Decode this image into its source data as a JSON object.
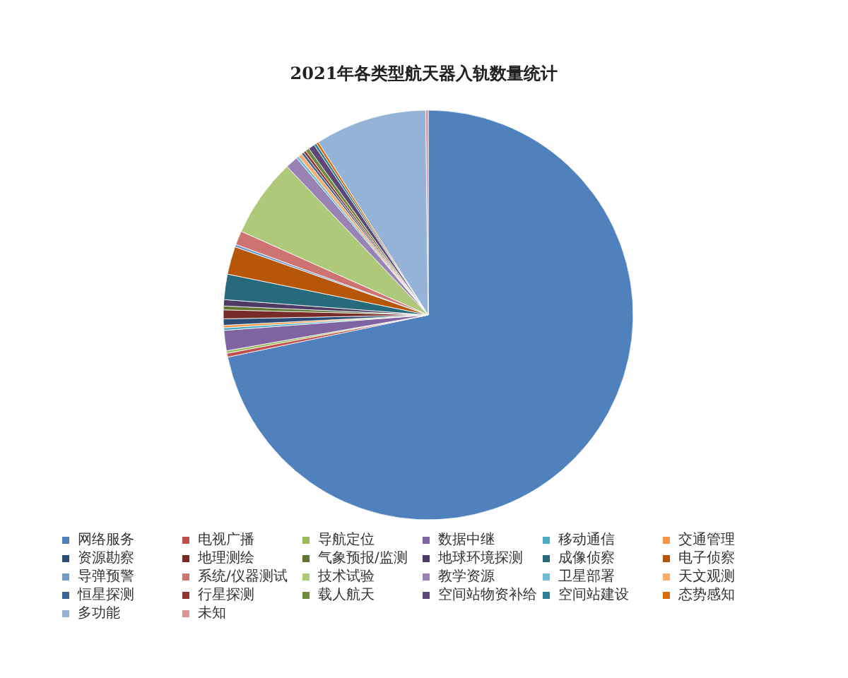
{
  "chart_data": {
    "type": "pie",
    "title": "2021年各类型航天器入轨数量统计",
    "categories": [
      "网络服务",
      "电视广播",
      "导航定位",
      "数据中继",
      "移动通信",
      "交通管理",
      "资源勘察",
      "地理测绘",
      "气象预报/监测",
      "地球环境探测",
      "成像侦察",
      "电子侦察",
      "导弹预警",
      "系统/仪器测试",
      "技术试验",
      "教学资源",
      "卫星部署",
      "天文观测",
      "恒星探测",
      "行星探测",
      "载人航天",
      "空间站物资补给",
      "空间站建设",
      "态势感知",
      "多功能",
      "未知"
    ],
    "values": [
      71.7,
      0.3,
      0.2,
      1.6,
      0.2,
      0.2,
      0.5,
      0.7,
      0.3,
      0.5,
      2.0,
      2.2,
      0.2,
      1.1,
      6.2,
      1.0,
      0.2,
      0.3,
      0.2,
      0.2,
      0.3,
      0.5,
      0.2,
      0.2,
      8.8,
      0.2
    ],
    "colors": [
      "#4f81bd",
      "#c0504d",
      "#9bbb59",
      "#8064a2",
      "#4bacc6",
      "#f79646",
      "#2c4d75",
      "#772c2a",
      "#5f7530",
      "#4d3b62",
      "#276a7c",
      "#b65708",
      "#729aca",
      "#cd7371",
      "#afc97a",
      "#9983b5",
      "#6fbdd1",
      "#f9ab6b",
      "#3c6594",
      "#8f3633",
      "#71893f",
      "#5c4776",
      "#2f7f94",
      "#d86b0a",
      "#95b3d7",
      "#d99694"
    ],
    "legend": "bottom"
  }
}
